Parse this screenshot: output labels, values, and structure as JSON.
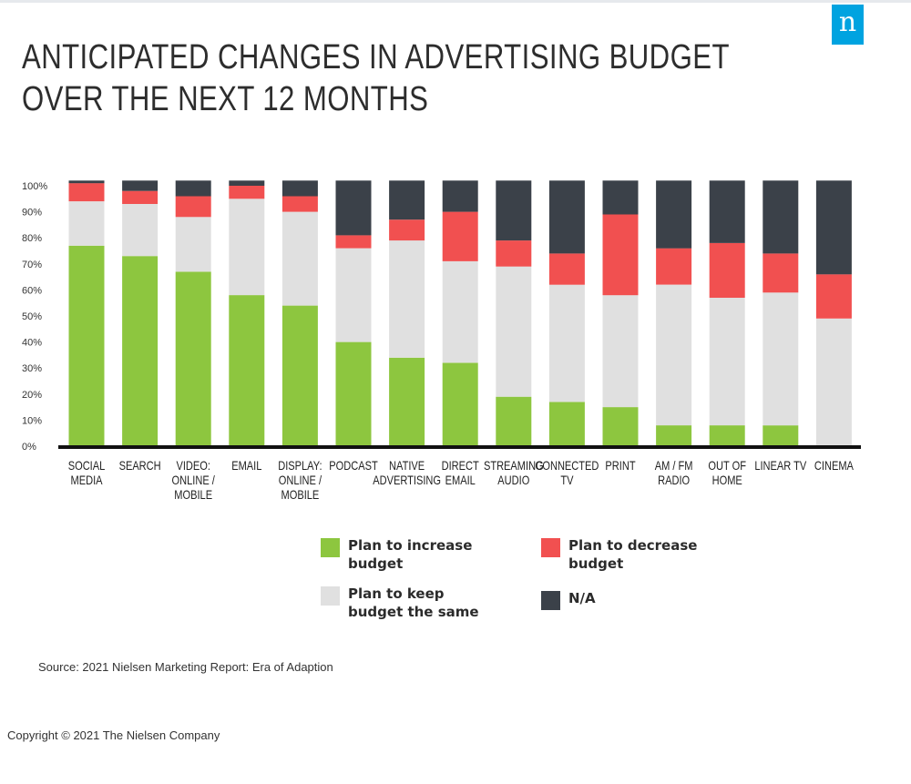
{
  "title_line1": "ANTICIPATED CHANGES IN ADVERTISING BUDGET",
  "title_line2": "OVER THE NEXT 12 MONTHS",
  "logo_letter": "n",
  "colors": {
    "increase": "#8dc63f",
    "same": "#e0e0e0",
    "decrease": "#f15050",
    "na": "#3b4149",
    "brand": "#00a3e0"
  },
  "legend": [
    {
      "key": "increase",
      "label": "Plan to increase budget"
    },
    {
      "key": "decrease",
      "label": "Plan to decrease budget"
    },
    {
      "key": "same",
      "label": "Plan to keep budget the same"
    },
    {
      "key": "na",
      "label": "N/A"
    }
  ],
  "chart_data": {
    "type": "bar",
    "stacked": true,
    "title": "ANTICIPATED CHANGES IN ADVERTISING BUDGET OVER THE NEXT 12 MONTHS",
    "categories": [
      [
        "SOCIAL",
        "MEDIA"
      ],
      [
        "SEARCH"
      ],
      [
        "VIDEO:",
        "ONLINE /",
        "MOBILE"
      ],
      [
        "EMAIL"
      ],
      [
        "DISPLAY:",
        "ONLINE /",
        "MOBILE"
      ],
      [
        "PODCAST"
      ],
      [
        "NATIVE",
        "ADVERTISING"
      ],
      [
        "DIRECT",
        "EMAIL"
      ],
      [
        "STREAMING",
        "AUDIO"
      ],
      [
        "CONNECTED",
        "TV"
      ],
      [
        "PRINT"
      ],
      [
        "AM / FM",
        "RADIO"
      ],
      [
        "OUT OF",
        "HOME"
      ],
      [
        "LINEAR TV"
      ],
      [
        "CINEMA"
      ]
    ],
    "series": [
      {
        "name": "Plan to increase budget",
        "key": "increase",
        "values": [
          77,
          73,
          67,
          58,
          54,
          40,
          34,
          32,
          19,
          17,
          15,
          8,
          8,
          8,
          0
        ]
      },
      {
        "name": "Plan to keep budget the same",
        "key": "same",
        "values": [
          17,
          20,
          21,
          37,
          36,
          36,
          45,
          39,
          50,
          45,
          43,
          54,
          49,
          51,
          49
        ]
      },
      {
        "name": "Plan to decrease budget",
        "key": "decrease",
        "values": [
          7,
          5,
          8,
          5,
          6,
          5,
          8,
          19,
          10,
          12,
          31,
          14,
          21,
          15,
          17
        ]
      },
      {
        "name": "N/A",
        "key": "na",
        "values": [
          1,
          4,
          6,
          2,
          6,
          21,
          15,
          12,
          23,
          28,
          13,
          26,
          24,
          28,
          36
        ]
      }
    ],
    "yticks": [
      "0%",
      "10%",
      "20%",
      "30%",
      "40%",
      "50%",
      "60%",
      "70%",
      "80%",
      "90%",
      "100%"
    ],
    "ylim": [
      0,
      100
    ],
    "xlabel": "",
    "ylabel": "",
    "legend_position": "bottom"
  },
  "source": "Source: 2021 Nielsen Marketing Report: Era of Adaption",
  "copyright": "Copyright © 2021 The Nielsen Company"
}
